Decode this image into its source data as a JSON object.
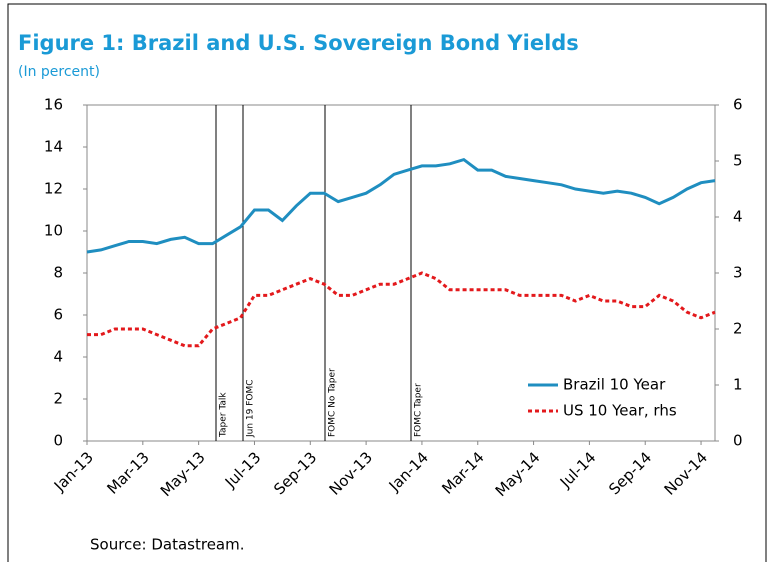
{
  "chart_data": {
    "type": "line",
    "title": "Figure 1: Brazil and U.S. Sovereign Bond Yields",
    "subtitle": "(In percent)",
    "source": "Source: Datastream.",
    "categories": [
      "Jan-13",
      null,
      null,
      null,
      "Mar-13",
      null,
      null,
      null,
      "May-13",
      null,
      null,
      null,
      "Jul-13",
      null,
      null,
      null,
      "Sep-13",
      null,
      null,
      null,
      "Nov-13",
      null,
      null,
      null,
      "Jan-14",
      null,
      null,
      null,
      "Mar-14",
      null,
      null,
      null,
      "May-14",
      null,
      null,
      null,
      "Jul-14",
      null,
      null,
      null,
      "Sep-14",
      null,
      null,
      null,
      "Nov-14",
      null
    ],
    "series": [
      {
        "name": "Brazil 10 Year",
        "color": "#1f8ec0",
        "axis": "y",
        "values": [
          9.0,
          9.1,
          9.3,
          9.5,
          9.5,
          9.4,
          9.6,
          9.7,
          9.4,
          9.4,
          9.8,
          10.2,
          11.0,
          11.0,
          10.5,
          11.2,
          11.8,
          11.8,
          11.4,
          11.6,
          11.8,
          12.2,
          12.7,
          12.9,
          13.1,
          13.1,
          13.2,
          13.4,
          12.9,
          12.9,
          12.6,
          12.5,
          12.4,
          12.3,
          12.2,
          12.0,
          11.9,
          11.8,
          11.9,
          11.8,
          11.6,
          11.3,
          11.6,
          12.0,
          12.3,
          12.4
        ]
      },
      {
        "name": "US 10 Year, rhs",
        "color": "#e3191c",
        "axis": "y2",
        "dashed": true,
        "values": [
          1.9,
          1.9,
          2.0,
          2.0,
          2.0,
          1.9,
          1.8,
          1.7,
          1.7,
          2.0,
          2.1,
          2.2,
          2.6,
          2.6,
          2.7,
          2.8,
          2.9,
          2.8,
          2.6,
          2.6,
          2.7,
          2.8,
          2.8,
          2.9,
          3.0,
          2.9,
          2.7,
          2.7,
          2.7,
          2.7,
          2.7,
          2.6,
          2.6,
          2.6,
          2.6,
          2.5,
          2.6,
          2.5,
          2.5,
          2.4,
          2.4,
          2.6,
          2.5,
          2.3,
          2.2,
          2.3
        ]
      }
    ],
    "ylim": [
      0,
      16
    ],
    "yticks": [
      0,
      2,
      4,
      6,
      8,
      10,
      12,
      14,
      16
    ],
    "y2lim": [
      0,
      6
    ],
    "y2ticks": [
      0,
      1,
      2,
      3,
      4,
      5,
      6
    ],
    "annotations": [
      "Taper Talk",
      "Jun 19 FOMC",
      "FOMC No Taper",
      "FOMC Taper"
    ],
    "legend": "lower right"
  }
}
